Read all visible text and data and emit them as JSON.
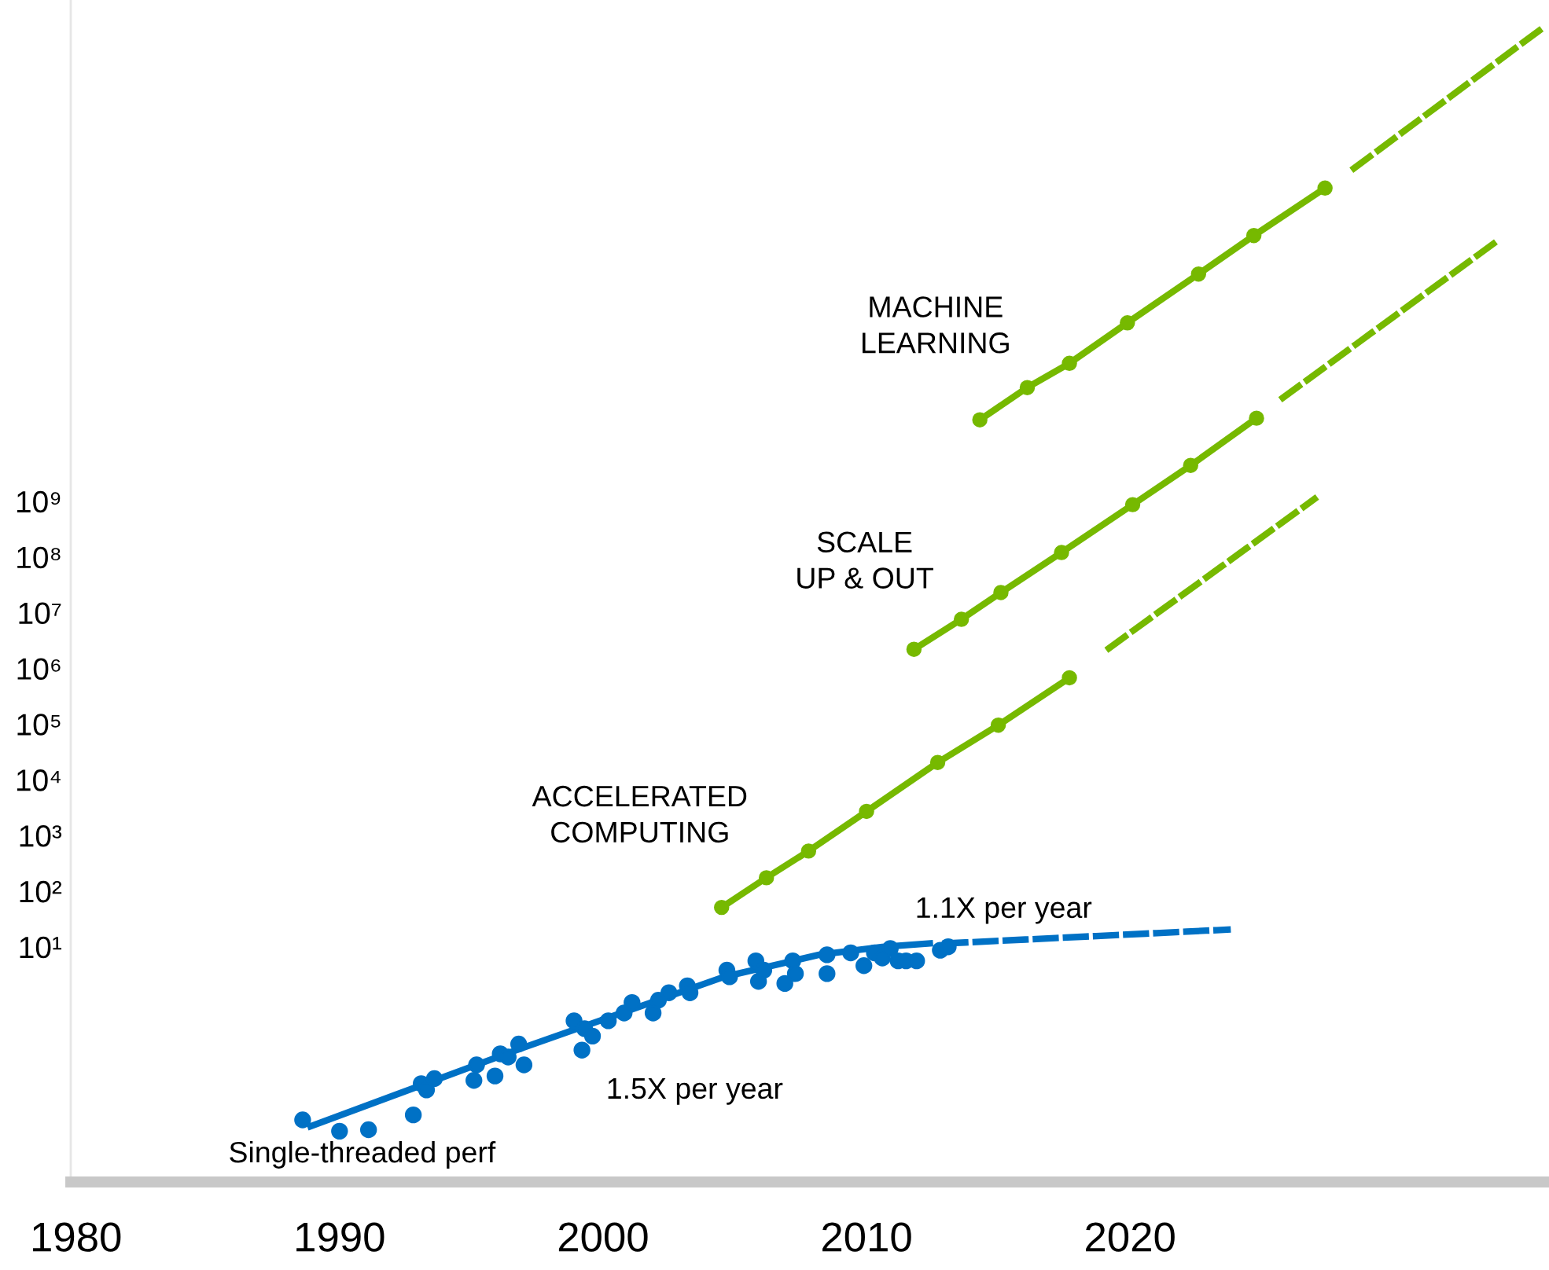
{
  "chart_data": {
    "type": "line",
    "log": "y",
    "grid": false,
    "xlim": [
      1979.8,
      2035.9
    ],
    "xticks": [
      1980,
      1990,
      2000,
      2010,
      2020
    ],
    "ylim": [
      0.0006,
      1e+18
    ],
    "yticks": [
      {
        "value": 10,
        "label": "10¹"
      },
      {
        "value": 100,
        "label": "10²"
      },
      {
        "value": 1000,
        "label": "10³"
      },
      {
        "value": 10000,
        "label": "10⁴"
      },
      {
        "value": 100000,
        "label": "10⁵"
      },
      {
        "value": 1000000,
        "label": "10⁶"
      },
      {
        "value": 10000000,
        "label": "10⁷"
      },
      {
        "value": 100000000,
        "label": "10⁸"
      },
      {
        "value": 1000000000,
        "label": "10⁹"
      }
    ],
    "series": [
      {
        "type": "scatter",
        "color": "#0071c5",
        "marker": "circle",
        "x": [
          1988.6,
          1990.0,
          1991.1,
          1992.8,
          1993.1,
          1993.3,
          1993.6,
          1995.1,
          1995.2,
          1995.9,
          1996.1,
          1996.4,
          1996.8,
          1997.0,
          1998.9,
          1999.2,
          1999.3,
          1999.6,
          2000.2,
          2000.8,
          2001.1,
          2001.9,
          2002.1,
          2002.5,
          2003.2,
          2003.3,
          2004.7,
          2004.8,
          2005.8,
          2005.9,
          2006.1,
          2006.9,
          2007.2,
          2007.3,
          2008.5,
          2008.5,
          2009.4,
          2009.9,
          2010.3,
          2010.6,
          2010.9,
          2011.2,
          2011.5,
          2011.9,
          2012.8,
          2013.1
        ],
        "values": [
          0.0078,
          0.0049,
          0.0052,
          0.0096,
          0.035,
          0.027,
          0.043,
          0.04,
          0.076,
          0.048,
          0.12,
          0.105,
          0.18,
          0.076,
          0.47,
          0.14,
          0.34,
          0.25,
          0.47,
          0.65,
          1.0,
          0.65,
          1.1,
          1.5,
          2.0,
          1.5,
          3.8,
          2.9,
          5.6,
          2.4,
          3.8,
          2.2,
          5.6,
          3.3,
          7.2,
          3.3,
          7.8,
          4.6,
          7.8,
          6.3,
          9.3,
          5.6,
          5.6,
          5.6,
          8.7,
          10
        ]
      },
      {
        "color": "#0071c5",
        "marker": "none",
        "line_style": "solid",
        "x": [
          1988.9,
          1996.8,
          2004.6,
          2008.2,
          2010.6,
          2012.4
        ],
        "values": [
          0.006,
          0.145,
          2.9,
          7.2,
          10,
          11.5
        ]
      },
      {
        "color": "#0071c5",
        "marker": "none",
        "line_style": "dashed",
        "x": [
          2013.0,
          2023.7
        ],
        "values": [
          11.5,
          20.4
        ]
      },
      {
        "color": "#76b900",
        "marker": "circle",
        "line_style": "solid",
        "x": [
          2004.5,
          2006.2,
          2007.8,
          2010.0,
          2012.7,
          2015.0,
          2017.7
        ],
        "values": [
          51,
          174,
          525,
          2700,
          20400,
          95500,
          676000
        ]
      },
      {
        "color": "#76b900",
        "marker": "none",
        "line_style": "dashed",
        "x": [
          2019.2,
          2027.0
        ],
        "values": [
          2300000,
          1100000000
        ]
      },
      {
        "color": "#76b900",
        "marker": "circle",
        "line_style": "solid",
        "x": [
          2011.8,
          2013.6,
          2015.1,
          2017.4,
          2020.1,
          2022.3,
          2024.8
        ],
        "values": [
          2200000,
          7600000,
          23000000,
          120000000,
          870000000,
          4400000000,
          31000000000
        ]
      },
      {
        "color": "#76b900",
        "marker": "none",
        "line_style": "dashed",
        "x": [
          2025.8,
          2033.9
        ],
        "values": [
          72000000000,
          46000000000000
        ]
      },
      {
        "color": "#76b900",
        "marker": "circle",
        "line_style": "solid",
        "x": [
          2014.3,
          2016.1,
          2017.7,
          2019.9,
          2022.6,
          2024.7,
          2027.4
        ],
        "values": [
          29000000000,
          110000000000,
          300000000000,
          1600000000000,
          12000000000000,
          59000000000000,
          420000000000000
        ]
      },
      {
        "color": "#76b900",
        "marker": "none",
        "line_style": "dashed",
        "x": [
          2028.5,
          2035.6
        ],
        "values": [
          950000000000000,
          300000000000000000
        ]
      }
    ],
    "annotations": [
      "MACHINE\nLEARNING",
      "SCALE\nUP & OUT",
      "ACCELERATED\nCOMPUTING",
      "1.1X per year",
      "1.5X per year",
      "Single-threaded perf"
    ]
  }
}
